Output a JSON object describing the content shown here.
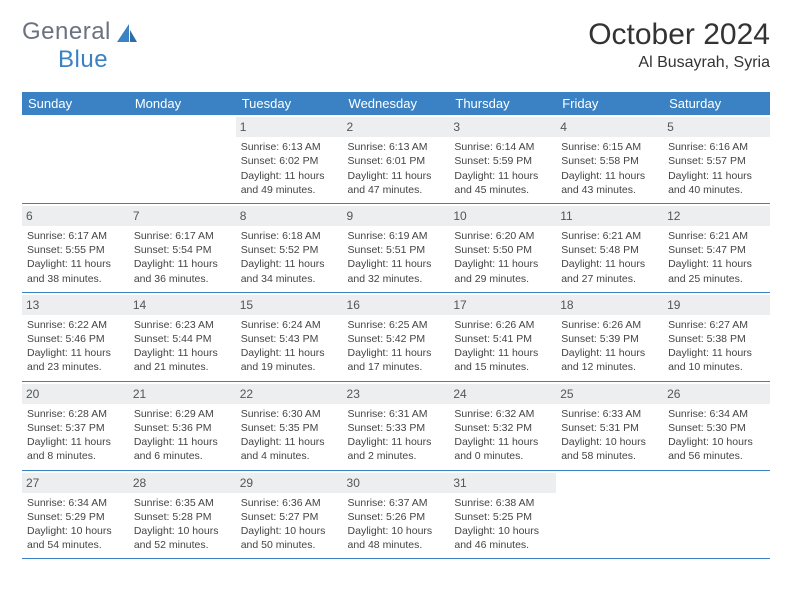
{
  "logo": {
    "part1": "General",
    "part2": "Blue"
  },
  "title": "October 2024",
  "location": "Al Busayrah, Syria",
  "colors": {
    "header_bg": "#3b82c4",
    "header_text": "#ffffff",
    "daynum_bg": "#eceef0",
    "border": "#3b82c4",
    "logo_gray": "#6b7280",
    "logo_blue": "#3b82c4"
  },
  "weekdays": [
    "Sunday",
    "Monday",
    "Tuesday",
    "Wednesday",
    "Thursday",
    "Friday",
    "Saturday"
  ],
  "weeks": [
    [
      {
        "day": "",
        "text": ""
      },
      {
        "day": "",
        "text": ""
      },
      {
        "day": "1",
        "text": "Sunrise: 6:13 AM\nSunset: 6:02 PM\nDaylight: 11 hours and 49 minutes."
      },
      {
        "day": "2",
        "text": "Sunrise: 6:13 AM\nSunset: 6:01 PM\nDaylight: 11 hours and 47 minutes."
      },
      {
        "day": "3",
        "text": "Sunrise: 6:14 AM\nSunset: 5:59 PM\nDaylight: 11 hours and 45 minutes."
      },
      {
        "day": "4",
        "text": "Sunrise: 6:15 AM\nSunset: 5:58 PM\nDaylight: 11 hours and 43 minutes."
      },
      {
        "day": "5",
        "text": "Sunrise: 6:16 AM\nSunset: 5:57 PM\nDaylight: 11 hours and 40 minutes."
      }
    ],
    [
      {
        "day": "6",
        "text": "Sunrise: 6:17 AM\nSunset: 5:55 PM\nDaylight: 11 hours and 38 minutes."
      },
      {
        "day": "7",
        "text": "Sunrise: 6:17 AM\nSunset: 5:54 PM\nDaylight: 11 hours and 36 minutes."
      },
      {
        "day": "8",
        "text": "Sunrise: 6:18 AM\nSunset: 5:52 PM\nDaylight: 11 hours and 34 minutes."
      },
      {
        "day": "9",
        "text": "Sunrise: 6:19 AM\nSunset: 5:51 PM\nDaylight: 11 hours and 32 minutes."
      },
      {
        "day": "10",
        "text": "Sunrise: 6:20 AM\nSunset: 5:50 PM\nDaylight: 11 hours and 29 minutes."
      },
      {
        "day": "11",
        "text": "Sunrise: 6:21 AM\nSunset: 5:48 PM\nDaylight: 11 hours and 27 minutes."
      },
      {
        "day": "12",
        "text": "Sunrise: 6:21 AM\nSunset: 5:47 PM\nDaylight: 11 hours and 25 minutes."
      }
    ],
    [
      {
        "day": "13",
        "text": "Sunrise: 6:22 AM\nSunset: 5:46 PM\nDaylight: 11 hours and 23 minutes."
      },
      {
        "day": "14",
        "text": "Sunrise: 6:23 AM\nSunset: 5:44 PM\nDaylight: 11 hours and 21 minutes."
      },
      {
        "day": "15",
        "text": "Sunrise: 6:24 AM\nSunset: 5:43 PM\nDaylight: 11 hours and 19 minutes."
      },
      {
        "day": "16",
        "text": "Sunrise: 6:25 AM\nSunset: 5:42 PM\nDaylight: 11 hours and 17 minutes."
      },
      {
        "day": "17",
        "text": "Sunrise: 6:26 AM\nSunset: 5:41 PM\nDaylight: 11 hours and 15 minutes."
      },
      {
        "day": "18",
        "text": "Sunrise: 6:26 AM\nSunset: 5:39 PM\nDaylight: 11 hours and 12 minutes."
      },
      {
        "day": "19",
        "text": "Sunrise: 6:27 AM\nSunset: 5:38 PM\nDaylight: 11 hours and 10 minutes."
      }
    ],
    [
      {
        "day": "20",
        "text": "Sunrise: 6:28 AM\nSunset: 5:37 PM\nDaylight: 11 hours and 8 minutes."
      },
      {
        "day": "21",
        "text": "Sunrise: 6:29 AM\nSunset: 5:36 PM\nDaylight: 11 hours and 6 minutes."
      },
      {
        "day": "22",
        "text": "Sunrise: 6:30 AM\nSunset: 5:35 PM\nDaylight: 11 hours and 4 minutes."
      },
      {
        "day": "23",
        "text": "Sunrise: 6:31 AM\nSunset: 5:33 PM\nDaylight: 11 hours and 2 minutes."
      },
      {
        "day": "24",
        "text": "Sunrise: 6:32 AM\nSunset: 5:32 PM\nDaylight: 11 hours and 0 minutes."
      },
      {
        "day": "25",
        "text": "Sunrise: 6:33 AM\nSunset: 5:31 PM\nDaylight: 10 hours and 58 minutes."
      },
      {
        "day": "26",
        "text": "Sunrise: 6:34 AM\nSunset: 5:30 PM\nDaylight: 10 hours and 56 minutes."
      }
    ],
    [
      {
        "day": "27",
        "text": "Sunrise: 6:34 AM\nSunset: 5:29 PM\nDaylight: 10 hours and 54 minutes."
      },
      {
        "day": "28",
        "text": "Sunrise: 6:35 AM\nSunset: 5:28 PM\nDaylight: 10 hours and 52 minutes."
      },
      {
        "day": "29",
        "text": "Sunrise: 6:36 AM\nSunset: 5:27 PM\nDaylight: 10 hours and 50 minutes."
      },
      {
        "day": "30",
        "text": "Sunrise: 6:37 AM\nSunset: 5:26 PM\nDaylight: 10 hours and 48 minutes."
      },
      {
        "day": "31",
        "text": "Sunrise: 6:38 AM\nSunset: 5:25 PM\nDaylight: 10 hours and 46 minutes."
      },
      {
        "day": "",
        "text": ""
      },
      {
        "day": "",
        "text": ""
      }
    ]
  ]
}
